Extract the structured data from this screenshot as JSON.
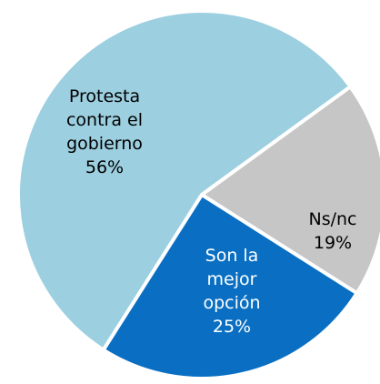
{
  "chart_data": {
    "type": "pie",
    "categories": [
      "Protesta contra el gobierno",
      "Ns/nc",
      "Son la mejor opción"
    ],
    "values": [
      56,
      19,
      25
    ],
    "value_labels": [
      "56%",
      "19%",
      "25%"
    ],
    "colors": [
      "#9ccfe0",
      "#c6c6c6",
      "#0a6fc2"
    ]
  }
}
